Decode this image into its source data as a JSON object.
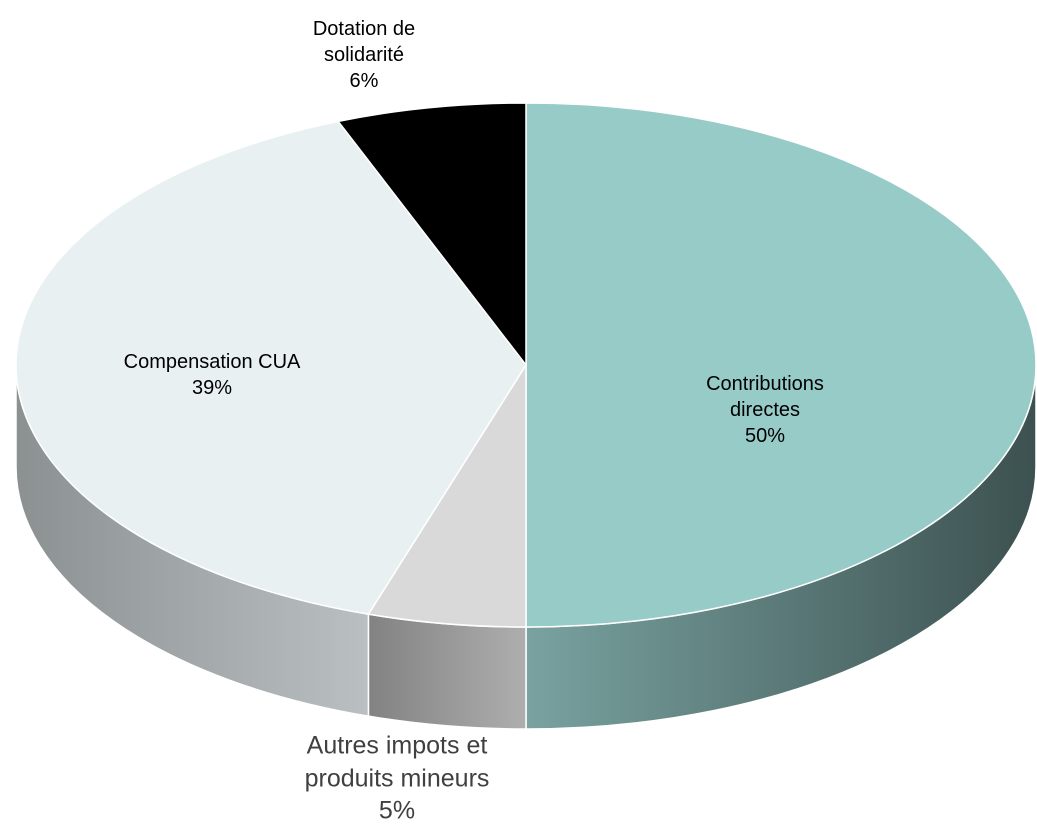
{
  "chart_data": {
    "type": "pie",
    "categories": [
      "Contributions directes",
      "Autres impots et produits mineurs",
      "Compensation CUA",
      "Dotation de solidarité"
    ],
    "values": [
      50,
      5,
      39,
      6
    ],
    "value_labels": [
      "50%",
      "5%",
      "39%",
      "6%"
    ],
    "colors": [
      "#97cbc8",
      "#d9d9d9",
      "#e8f0f2",
      "#000000"
    ]
  }
}
